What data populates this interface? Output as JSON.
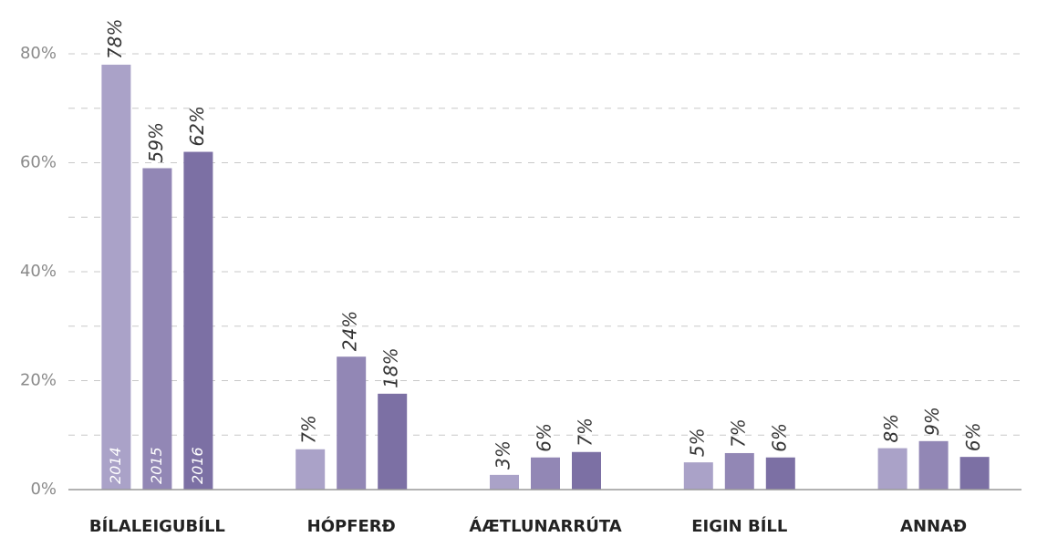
{
  "chart_data": {
    "type": "bar",
    "categories": [
      "BÍLALEIGUBÍLL",
      "HÓPFERÐ",
      "ÁÆTLUNARRÚTA",
      "EIGIN BÍLL",
      "ANNAÐ"
    ],
    "series": [
      {
        "name": "2014",
        "color": "#aaa2c8",
        "values": [
          78,
          7.4,
          2.7,
          5,
          7.6
        ],
        "value_labels": [
          "78%",
          "7%",
          "3%",
          "5%",
          "8%"
        ]
      },
      {
        "name": "2015",
        "color": "#9287b5",
        "values": [
          59,
          24.4,
          5.9,
          6.7,
          8.9
        ],
        "value_labels": [
          "59%",
          "24%",
          "6%",
          "7%",
          "9%"
        ]
      },
      {
        "name": "2016",
        "color": "#7c70a4",
        "values": [
          62,
          17.6,
          6.9,
          5.9,
          6
        ],
        "value_labels": [
          "62%",
          "18%",
          "7%",
          "6%",
          "6%"
        ]
      }
    ],
    "ylim": [
      0,
      80
    ],
    "yticks": [
      {
        "value": 0,
        "label": "0%"
      },
      {
        "value": 20,
        "label": "20%"
      },
      {
        "value": 40,
        "label": "40%"
      },
      {
        "value": 60,
        "label": "60%"
      },
      {
        "value": 80,
        "label": "80%"
      }
    ],
    "minor_yticks": [
      10,
      30,
      50,
      70
    ],
    "grid": true
  }
}
